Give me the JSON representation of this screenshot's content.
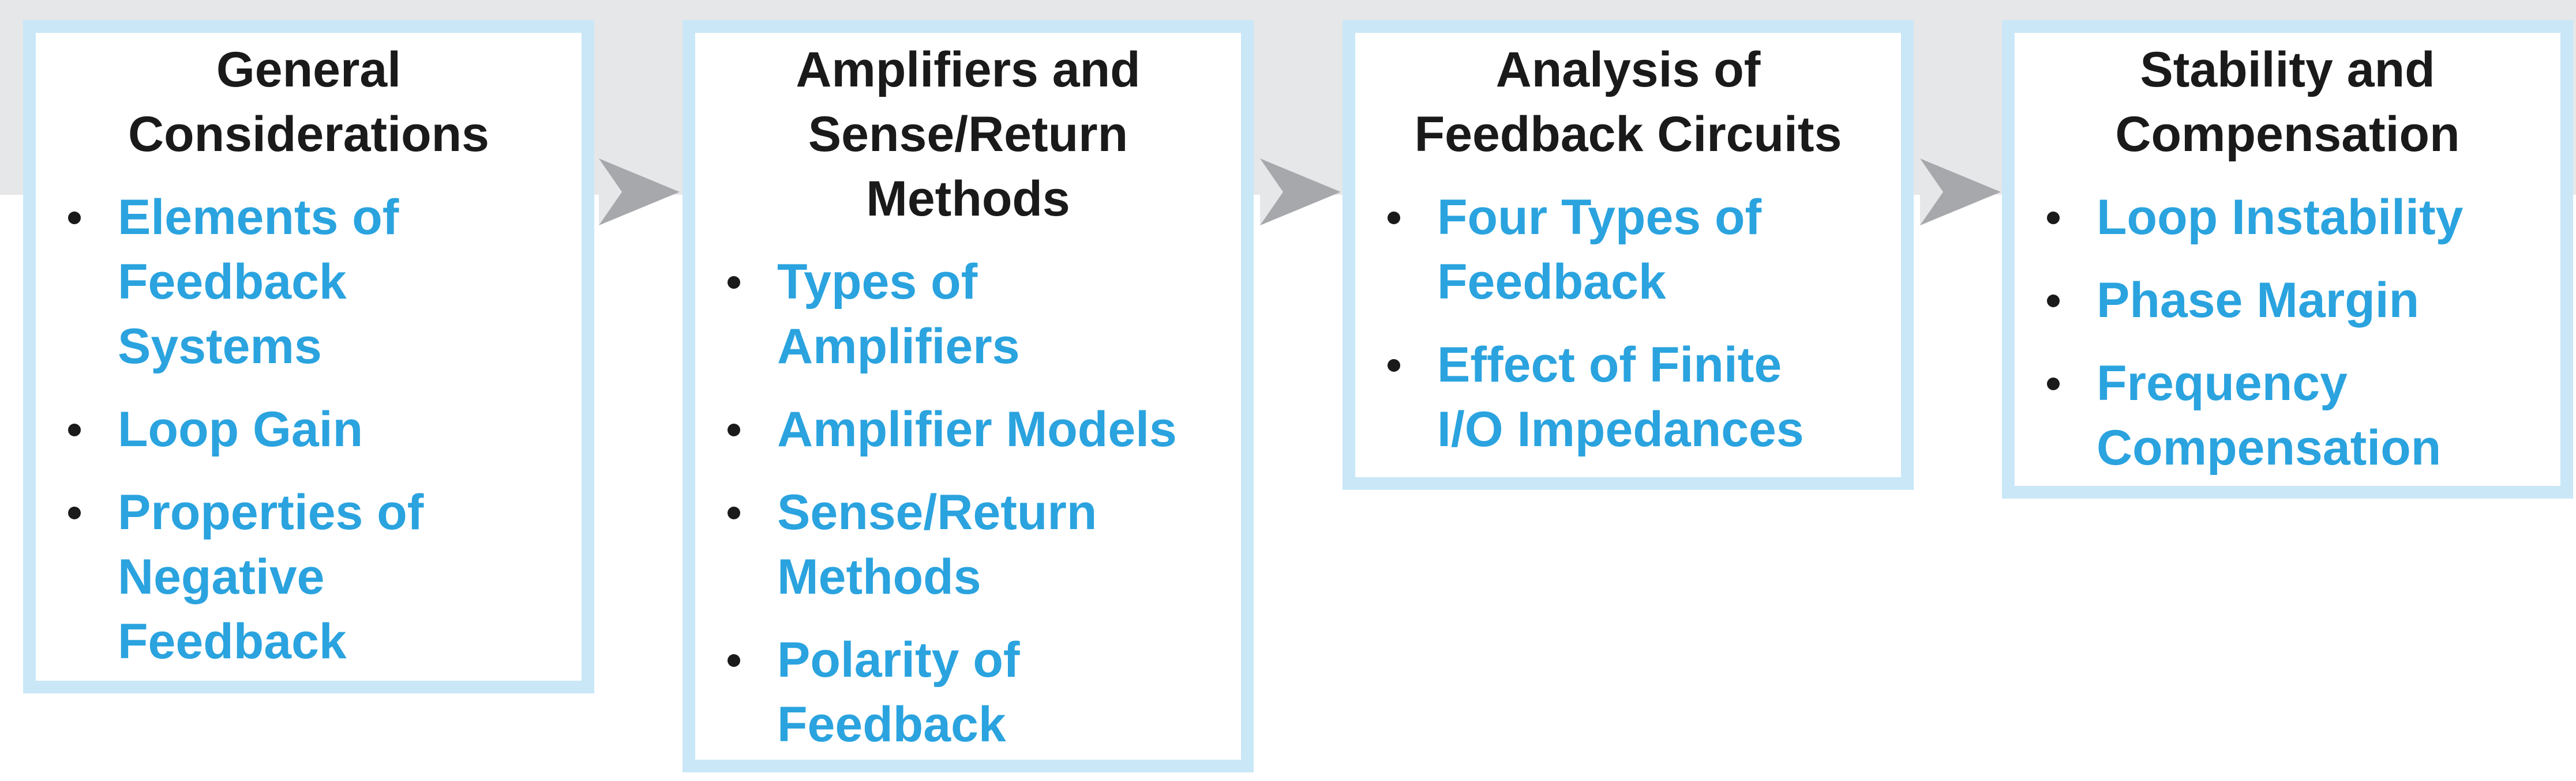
{
  "colors": {
    "band": "#e6e7e9",
    "box_border": "#c9e7f7",
    "title_text": "#1a1a1a",
    "item_text": "#2aa3df",
    "arrow": "#a6a8ab"
  },
  "boxes": [
    {
      "title": "General\nConsiderations",
      "items": [
        "Elements of\nFeedback\nSystems",
        "Loop Gain",
        "Properties of\nNegative\nFeedback"
      ]
    },
    {
      "title": "Amplifiers and\nSense/Return\nMethods",
      "items": [
        "Types of\nAmplifiers",
        "Amplifier Models",
        "Sense/Return\nMethods",
        "Polarity of\nFeedback"
      ]
    },
    {
      "title": "Analysis of\nFeedback Circuits",
      "items": [
        "Four Types of\nFeedback",
        "Effect of Finite\nI/O Impedances"
      ]
    },
    {
      "title": "Stability and\nCompensation",
      "items": [
        "Loop Instability",
        "Phase Margin",
        "Frequency\nCompensation"
      ]
    }
  ],
  "arrows": [
    {
      "icon": "arrow-right-icon"
    },
    {
      "icon": "arrow-right-icon"
    },
    {
      "icon": "arrow-right-icon"
    }
  ]
}
